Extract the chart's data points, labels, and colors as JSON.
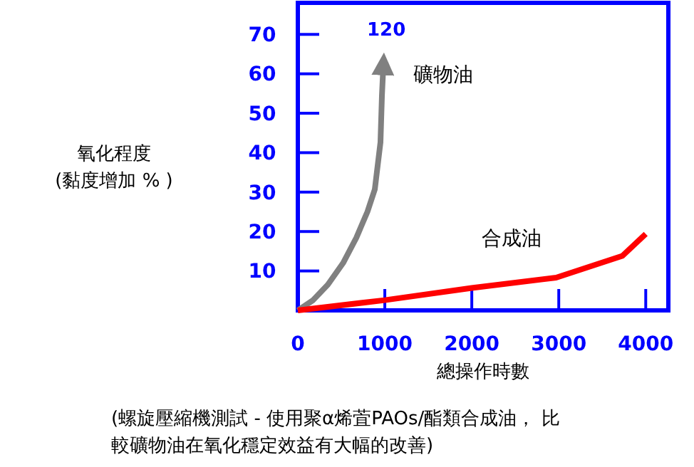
{
  "chart_data": {
    "type": "line",
    "xlabel": "總操作時數",
    "ylabel": "氧化程度\n(黏度增加 % )",
    "xlim": [
      0,
      4260
    ],
    "xticks": [
      0,
      1000,
      2000,
      3000,
      4000
    ],
    "ylim": [
      0,
      78
    ],
    "yticks": [
      10,
      20,
      30,
      40,
      50,
      60,
      70
    ],
    "grid": false,
    "marker": "none",
    "line_style": "solid",
    "series": [
      {
        "name": "礦物油",
        "color": "#808080",
        "x": [
          0,
          170,
          344,
          520,
          672,
          800,
          885,
          950,
          967,
          984
        ],
        "values": [
          0,
          2.5,
          6.5,
          12,
          18.4,
          25,
          30.7,
          42.6,
          54.5,
          62.5
        ]
      },
      {
        "name": "合成油",
        "color": "#ff0000",
        "x": [
          0,
          1000,
          2000,
          2970,
          3730,
          4000
        ],
        "values": [
          0,
          2.6,
          5.7,
          8.3,
          13.8,
          19.4
        ]
      }
    ],
    "annotations": [
      "120",
      "(螺旋壓縮機測試 - 使用聚α烯萓PAOs/酯類合成油， 比",
      "較礦物油在氧化穩定效益有大幅的改善)"
    ]
  }
}
